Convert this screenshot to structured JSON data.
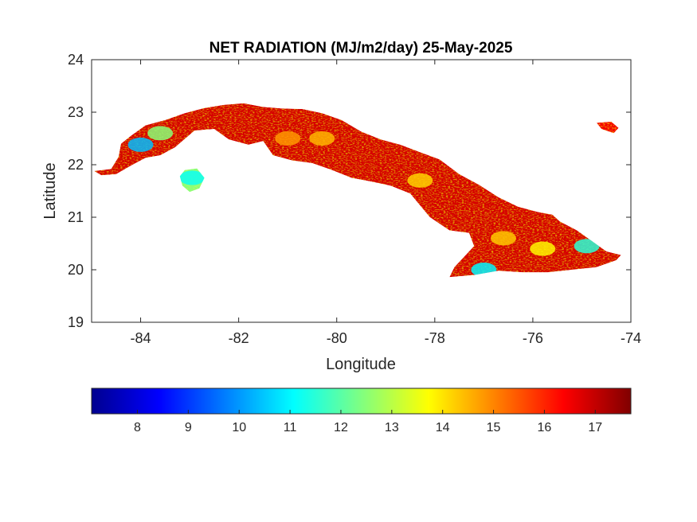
{
  "chart_data": {
    "type": "heatmap",
    "title": "NET RADIATION (MJ/m2/day) 25-May-2025",
    "xlabel": "Longitude",
    "ylabel": "Latitude",
    "xlim": [
      -85,
      -74
    ],
    "ylim": [
      19,
      24
    ],
    "x_ticks": [
      -84,
      -82,
      -80,
      -78,
      -76,
      -74
    ],
    "y_ticks": [
      19,
      20,
      21,
      22,
      23,
      24
    ],
    "grid": false,
    "colormap": "jet",
    "colorbar": {
      "orientation": "horizontal",
      "placement": "below",
      "range": [
        7.1,
        17.7
      ],
      "ticks": [
        8,
        9,
        10,
        11,
        12,
        13,
        14,
        15,
        16,
        17
      ],
      "colors": [
        "#00008f",
        "#0000ff",
        "#0080ff",
        "#00ffff",
        "#80ff80",
        "#ffff00",
        "#ff8000",
        "#ff0000",
        "#800000"
      ]
    },
    "region": "Cuba",
    "regions": [
      {
        "name": "main-island",
        "typical_value": 16.8,
        "outline": [
          [
            -84.95,
            21.88
          ],
          [
            -84.6,
            21.92
          ],
          [
            -84.45,
            22.15
          ],
          [
            -84.4,
            22.4
          ],
          [
            -84.2,
            22.55
          ],
          [
            -83.9,
            22.75
          ],
          [
            -83.5,
            22.85
          ],
          [
            -83.1,
            22.98
          ],
          [
            -82.7,
            23.08
          ],
          [
            -82.3,
            23.14
          ],
          [
            -81.9,
            23.17
          ],
          [
            -81.5,
            23.1
          ],
          [
            -81.1,
            23.07
          ],
          [
            -80.7,
            23.06
          ],
          [
            -80.3,
            22.98
          ],
          [
            -79.9,
            22.85
          ],
          [
            -79.5,
            22.63
          ],
          [
            -79.1,
            22.48
          ],
          [
            -78.7,
            22.38
          ],
          [
            -78.3,
            22.24
          ],
          [
            -77.9,
            22.1
          ],
          [
            -77.5,
            21.82
          ],
          [
            -77.1,
            21.62
          ],
          [
            -76.7,
            21.38
          ],
          [
            -76.3,
            21.2
          ],
          [
            -75.9,
            21.1
          ],
          [
            -75.6,
            21.05
          ],
          [
            -75.45,
            20.92
          ],
          [
            -75.1,
            20.75
          ],
          [
            -74.8,
            20.55
          ],
          [
            -74.5,
            20.35
          ],
          [
            -74.2,
            20.28
          ],
          [
            -74.3,
            20.18
          ],
          [
            -74.7,
            20.05
          ],
          [
            -75.2,
            20.0
          ],
          [
            -75.7,
            19.95
          ],
          [
            -76.2,
            19.95
          ],
          [
            -76.7,
            19.98
          ],
          [
            -77.2,
            19.9
          ],
          [
            -77.7,
            19.86
          ],
          [
            -77.6,
            20.05
          ],
          [
            -77.2,
            20.45
          ],
          [
            -77.3,
            20.7
          ],
          [
            -77.7,
            20.75
          ],
          [
            -78.1,
            21.0
          ],
          [
            -78.5,
            21.45
          ],
          [
            -78.9,
            21.6
          ],
          [
            -79.3,
            21.68
          ],
          [
            -79.7,
            21.75
          ],
          [
            -80.1,
            21.9
          ],
          [
            -80.5,
            22.03
          ],
          [
            -80.9,
            22.08
          ],
          [
            -81.3,
            22.18
          ],
          [
            -81.5,
            22.45
          ],
          [
            -81.8,
            22.38
          ],
          [
            -82.2,
            22.48
          ],
          [
            -82.5,
            22.68
          ],
          [
            -82.9,
            22.65
          ],
          [
            -83.3,
            22.33
          ],
          [
            -83.6,
            22.18
          ],
          [
            -83.9,
            22.13
          ],
          [
            -84.2,
            21.98
          ],
          [
            -84.5,
            21.82
          ],
          [
            -84.8,
            21.8
          ]
        ]
      },
      {
        "name": "isla-de-la-juventud",
        "typical_value": 12.5,
        "outline": [
          [
            -83.1,
            21.9
          ],
          [
            -82.85,
            21.93
          ],
          [
            -82.7,
            21.75
          ],
          [
            -82.8,
            21.55
          ],
          [
            -83.0,
            21.48
          ],
          [
            -83.15,
            21.6
          ],
          [
            -83.2,
            21.78
          ]
        ]
      },
      {
        "name": "cayo-north-east",
        "typical_value": 16.5,
        "outline": [
          [
            -74.7,
            22.8
          ],
          [
            -74.4,
            22.82
          ],
          [
            -74.25,
            22.7
          ],
          [
            -74.35,
            22.6
          ],
          [
            -74.6,
            22.68
          ]
        ]
      }
    ],
    "low_value_zones": [
      {
        "lon": -84.0,
        "lat": 22.38,
        "value": 10.4
      },
      {
        "lon": -83.6,
        "lat": 22.6,
        "value": 12.5
      },
      {
        "lon": -82.95,
        "lat": 21.75,
        "value": 11.2
      },
      {
        "lon": -77.0,
        "lat": 20.0,
        "value": 11.0
      },
      {
        "lon": -74.9,
        "lat": 20.45,
        "value": 11.5
      },
      {
        "lon": -75.8,
        "lat": 20.4,
        "value": 13.8
      },
      {
        "lon": -78.3,
        "lat": 21.7,
        "value": 14.2
      },
      {
        "lon": -80.3,
        "lat": 22.5,
        "value": 14.5
      },
      {
        "lon": -81.0,
        "lat": 22.5,
        "value": 14.8
      },
      {
        "lon": -76.6,
        "lat": 20.6,
        "value": 14.3
      }
    ]
  }
}
